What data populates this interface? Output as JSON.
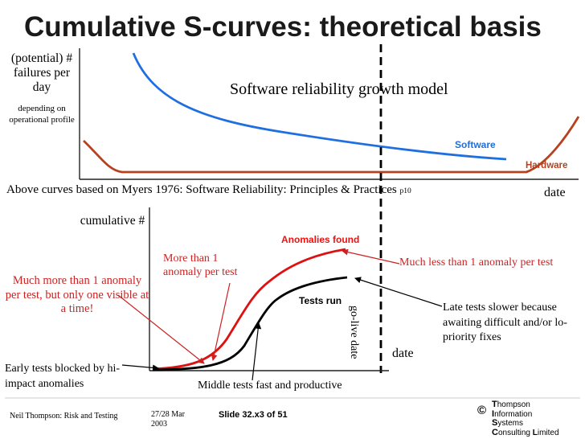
{
  "title": "Cumulative S-curves: theoretical basis",
  "top_chart": {
    "ylabel_main": "(potential) # failures per day",
    "ylabel_sub": "depending on operational profile",
    "model_label": "Software reliability growth model",
    "series_software": "Software",
    "series_hardware": "Hardware",
    "xlabel": "date",
    "colors": {
      "software": "#1f6fe0",
      "hardware": "#b7411e"
    }
  },
  "reference": {
    "text": "Above curves based on Myers 1976: Software Reliability: Principles & Practices",
    "page": "p10"
  },
  "bottom_chart": {
    "ylabel": "cumulative #",
    "xlabel": "date",
    "series_anomalies": "Anomalies found",
    "series_tests": "Tests run",
    "golive": "go-live date",
    "colors": {
      "anomalies": "#dd1111",
      "tests": "#000000"
    }
  },
  "annotations": {
    "more_than_1": "More than 1 anomaly per test",
    "much_less": "Much less than 1 anomaly per test",
    "much_more": "Much more than 1 anomaly per test, but only one visible at a time!",
    "late_tests": "Late tests slower because awaiting difficult and/or lo-priority fixes",
    "early_tests": "Early tests blocked by hi-impact anomalies",
    "middle_tests": "Middle tests fast and productive"
  },
  "footer": {
    "author": "Neil Thompson: Risk and Testing",
    "date": "27/28 Mar 2003",
    "slide": "Slide 32.x3 of 51",
    "copyright_symbol": "©",
    "company": [
      "Thompson",
      "Information",
      "Systems",
      "Consulting Limited"
    ]
  }
}
